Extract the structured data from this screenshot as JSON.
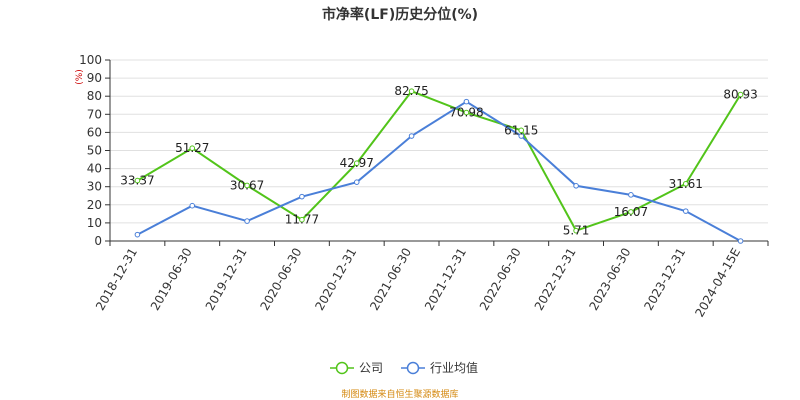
{
  "chart_data": {
    "type": "line",
    "title": "市净率(LF)历史分位(%)",
    "y_unit": "(%)",
    "ylim": [
      0,
      100
    ],
    "yticks": [
      0,
      10,
      20,
      30,
      40,
      50,
      60,
      70,
      80,
      90,
      100
    ],
    "grid": true,
    "legend_position": "bottom-center",
    "categories": [
      "2018-12-31",
      "2019-06-30",
      "2019-12-31",
      "2020-06-30",
      "2020-12-31",
      "2021-06-30",
      "2021-12-31",
      "2022-06-30",
      "2022-12-31",
      "2023-06-30",
      "2023-12-31",
      "2024-04-15E"
    ],
    "series": [
      {
        "name": "公司",
        "color": "#52c41a",
        "show_labels": true,
        "values": [
          33.37,
          51.27,
          30.67,
          11.77,
          42.97,
          82.75,
          70.98,
          61.15,
          5.71,
          16.07,
          31.61,
          80.93
        ]
      },
      {
        "name": "行业均值",
        "color": "#4a7fd8",
        "show_labels": false,
        "values": [
          3.5,
          19.5,
          11,
          24.5,
          32.5,
          58,
          77,
          58,
          30.5,
          25.5,
          16.5,
          0
        ]
      }
    ]
  },
  "source_text": "制图数据来自恒生聚源数据库"
}
